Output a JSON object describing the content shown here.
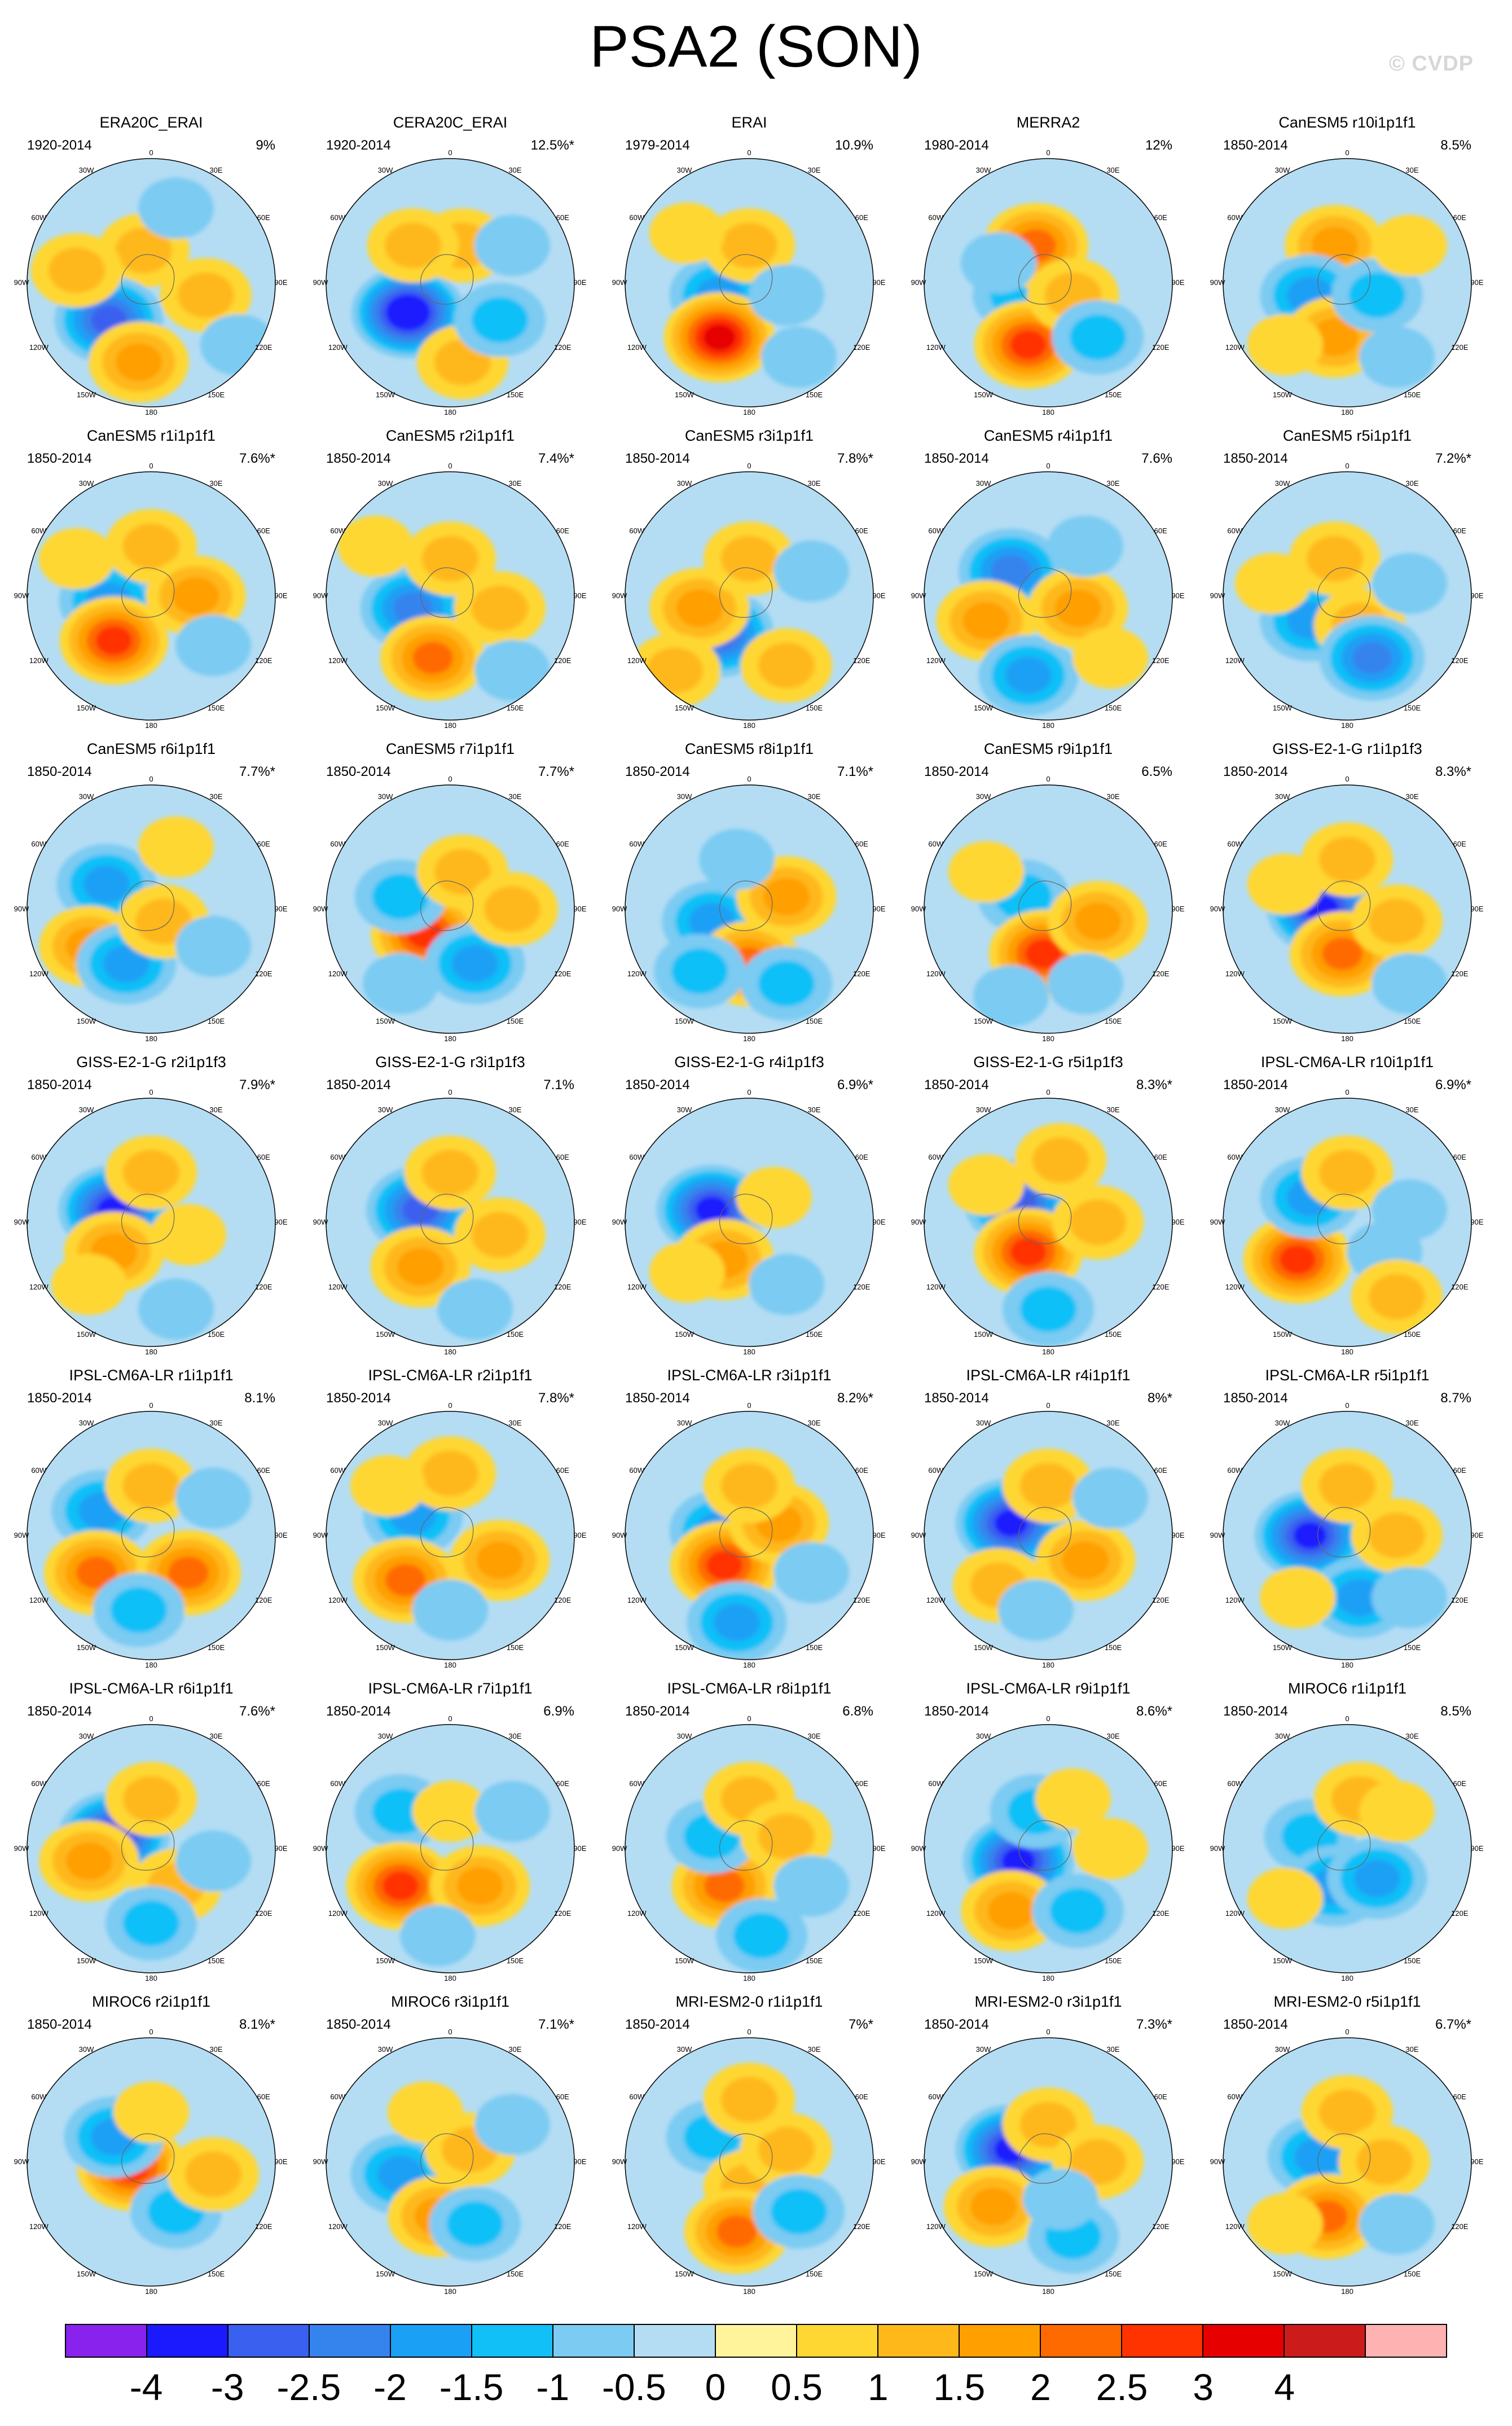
{
  "title": "PSA2 (SON)",
  "watermark": "© CVDP",
  "lon_labels": [
    "0",
    "30E",
    "60E",
    "90E",
    "120E",
    "150E",
    "180",
    "150W",
    "120W",
    "90W",
    "60W",
    "30W"
  ],
  "panels": [
    {
      "name": "ERA20C_ERAI",
      "period": "1920-2014",
      "pct": "9%"
    },
    {
      "name": "CERA20C_ERAI",
      "period": "1920-2014",
      "pct": "12.5%*"
    },
    {
      "name": "ERAI",
      "period": "1979-2014",
      "pct": "10.9%"
    },
    {
      "name": "MERRA2",
      "period": "1980-2014",
      "pct": "12%"
    },
    {
      "name": "CanESM5 r10i1p1f1",
      "period": "1850-2014",
      "pct": "8.5%"
    },
    {
      "name": "CanESM5 r1i1p1f1",
      "period": "1850-2014",
      "pct": "7.6%*"
    },
    {
      "name": "CanESM5 r2i1p1f1",
      "period": "1850-2014",
      "pct": "7.4%*"
    },
    {
      "name": "CanESM5 r3i1p1f1",
      "period": "1850-2014",
      "pct": "7.8%*"
    },
    {
      "name": "CanESM5 r4i1p1f1",
      "period": "1850-2014",
      "pct": "7.6%"
    },
    {
      "name": "CanESM5 r5i1p1f1",
      "period": "1850-2014",
      "pct": "7.2%*"
    },
    {
      "name": "CanESM5 r6i1p1f1",
      "period": "1850-2014",
      "pct": "7.7%*"
    },
    {
      "name": "CanESM5 r7i1p1f1",
      "period": "1850-2014",
      "pct": "7.7%*"
    },
    {
      "name": "CanESM5 r8i1p1f1",
      "period": "1850-2014",
      "pct": "7.1%*"
    },
    {
      "name": "CanESM5 r9i1p1f1",
      "period": "1850-2014",
      "pct": "6.5%"
    },
    {
      "name": "GISS-E2-1-G r1i1p1f3",
      "period": "1850-2014",
      "pct": "8.3%*"
    },
    {
      "name": "GISS-E2-1-G r2i1p1f3",
      "period": "1850-2014",
      "pct": "7.9%*"
    },
    {
      "name": "GISS-E2-1-G r3i1p1f3",
      "period": "1850-2014",
      "pct": "7.1%"
    },
    {
      "name": "GISS-E2-1-G r4i1p1f3",
      "period": "1850-2014",
      "pct": "6.9%*"
    },
    {
      "name": "GISS-E2-1-G r5i1p1f3",
      "period": "1850-2014",
      "pct": "8.3%*"
    },
    {
      "name": "IPSL-CM6A-LR r10i1p1f1",
      "period": "1850-2014",
      "pct": "6.9%*"
    },
    {
      "name": "IPSL-CM6A-LR r1i1p1f1",
      "period": "1850-2014",
      "pct": "8.1%"
    },
    {
      "name": "IPSL-CM6A-LR r2i1p1f1",
      "period": "1850-2014",
      "pct": "7.8%*"
    },
    {
      "name": "IPSL-CM6A-LR r3i1p1f1",
      "period": "1850-2014",
      "pct": "8.2%*"
    },
    {
      "name": "IPSL-CM6A-LR r4i1p1f1",
      "period": "1850-2014",
      "pct": "8%*"
    },
    {
      "name": "IPSL-CM6A-LR r5i1p1f1",
      "period": "1850-2014",
      "pct": "8.7%"
    },
    {
      "name": "IPSL-CM6A-LR r6i1p1f1",
      "period": "1850-2014",
      "pct": "7.6%*"
    },
    {
      "name": "IPSL-CM6A-LR r7i1p1f1",
      "period": "1850-2014",
      "pct": "6.9%"
    },
    {
      "name": "IPSL-CM6A-LR r8i1p1f1",
      "period": "1850-2014",
      "pct": "6.8%"
    },
    {
      "name": "IPSL-CM6A-LR r9i1p1f1",
      "period": "1850-2014",
      "pct": "8.6%*"
    },
    {
      "name": "MIROC6 r1i1p1f1",
      "period": "1850-2014",
      "pct": "8.5%"
    },
    {
      "name": "MIROC6 r2i1p1f1",
      "period": "1850-2014",
      "pct": "8.1%*"
    },
    {
      "name": "MIROC6 r3i1p1f1",
      "period": "1850-2014",
      "pct": "7.1%*"
    },
    {
      "name": "MRI-ESM2-0 r1i1p1f1",
      "period": "1850-2014",
      "pct": "7%*"
    },
    {
      "name": "MRI-ESM2-0 r3i1p1f1",
      "period": "1850-2014",
      "pct": "7.3%*"
    },
    {
      "name": "MRI-ESM2-0 r5i1p1f1",
      "period": "1850-2014",
      "pct": "6.7%*"
    }
  ],
  "colorbar": {
    "colors": [
      "#8a22ee",
      "#1b1aff",
      "#3a60f0",
      "#3584ee",
      "#1aa0f5",
      "#10c0f7",
      "#7ccbf2",
      "#b4ddf4",
      "#fff49c",
      "#ffd733",
      "#ffb81a",
      "#ff9f00",
      "#ff6a00",
      "#ff3300",
      "#e60000",
      "#cc1b1b",
      "#ffb2b2"
    ],
    "labels": [
      "-4",
      "-3",
      "-2.5",
      "-2",
      "-1.5",
      "-1",
      "-0.5",
      "0",
      "0.5",
      "1",
      "1.5",
      "2",
      "2.5",
      "3",
      "4"
    ]
  },
  "patterns": [
    [
      [
        0.47,
        0.37,
        1
      ],
      [
        0.33,
        0.65,
        -2.5
      ],
      [
        0.45,
        0.82,
        1.5
      ],
      [
        0.72,
        0.55,
        1
      ],
      [
        0.2,
        0.45,
        1
      ],
      [
        0.6,
        0.2,
        -0.5
      ],
      [
        0.85,
        0.75,
        -0.5
      ]
    ],
    [
      [
        0.33,
        0.62,
        -3.5
      ],
      [
        0.55,
        0.35,
        1
      ],
      [
        0.35,
        0.35,
        1
      ],
      [
        0.55,
        0.82,
        1
      ],
      [
        0.7,
        0.65,
        -1
      ],
      [
        0.75,
        0.35,
        -0.5
      ]
    ],
    [
      [
        0.38,
        0.55,
        -1.5
      ],
      [
        0.38,
        0.72,
        3
      ],
      [
        0.5,
        0.35,
        1
      ],
      [
        0.65,
        0.55,
        -0.5
      ],
      [
        0.7,
        0.8,
        -0.5
      ],
      [
        0.25,
        0.3,
        0.5
      ]
    ],
    [
      [
        0.38,
        0.55,
        -1
      ],
      [
        0.42,
        0.75,
        2.5
      ],
      [
        0.45,
        0.35,
        2
      ],
      [
        0.6,
        0.55,
        1
      ],
      [
        0.7,
        0.72,
        -1
      ],
      [
        0.3,
        0.42,
        -0.5
      ]
    ],
    [
      [
        0.45,
        0.35,
        1.5
      ],
      [
        0.35,
        0.55,
        -1.5
      ],
      [
        0.45,
        0.72,
        1.5
      ],
      [
        0.62,
        0.55,
        -1
      ],
      [
        0.75,
        0.35,
        0.5
      ],
      [
        0.7,
        0.8,
        -0.5
      ],
      [
        0.25,
        0.75,
        0.5
      ]
    ],
    [
      [
        0.33,
        0.52,
        -1.5
      ],
      [
        0.35,
        0.68,
        2.5
      ],
      [
        0.5,
        0.3,
        1
      ],
      [
        0.68,
        0.5,
        1.5
      ],
      [
        0.75,
        0.7,
        -0.5
      ],
      [
        0.2,
        0.35,
        0.5
      ]
    ],
    [
      [
        0.35,
        0.55,
        -2
      ],
      [
        0.43,
        0.75,
        2
      ],
      [
        0.5,
        0.35,
        1
      ],
      [
        0.7,
        0.55,
        1
      ],
      [
        0.75,
        0.8,
        -0.5
      ],
      [
        0.2,
        0.3,
        0.5
      ]
    ],
    [
      [
        0.38,
        0.65,
        -2.5
      ],
      [
        0.3,
        0.55,
        1.5
      ],
      [
        0.5,
        0.35,
        1
      ],
      [
        0.65,
        0.78,
        1
      ],
      [
        0.75,
        0.4,
        -0.5
      ],
      [
        0.2,
        0.8,
        1
      ]
    ],
    [
      [
        0.35,
        0.4,
        -2
      ],
      [
        0.25,
        0.6,
        1.5
      ],
      [
        0.42,
        0.82,
        -1.5
      ],
      [
        0.62,
        0.55,
        1.5
      ],
      [
        0.75,
        0.75,
        0.5
      ],
      [
        0.65,
        0.3,
        -0.5
      ]
    ],
    [
      [
        0.35,
        0.6,
        -1.5
      ],
      [
        0.45,
        0.35,
        1
      ],
      [
        0.55,
        0.62,
        1
      ],
      [
        0.6,
        0.75,
        -2
      ],
      [
        0.75,
        0.45,
        -0.5
      ],
      [
        0.2,
        0.45,
        0.5
      ]
    ],
    [
      [
        0.32,
        0.4,
        -1.5
      ],
      [
        0.25,
        0.65,
        1.5
      ],
      [
        0.4,
        0.72,
        -1.5
      ],
      [
        0.55,
        0.55,
        1
      ],
      [
        0.75,
        0.65,
        -0.5
      ],
      [
        0.6,
        0.25,
        0.5
      ]
    ],
    [
      [
        0.4,
        0.6,
        2.5
      ],
      [
        0.3,
        0.45,
        -1
      ],
      [
        0.6,
        0.72,
        -1.5
      ],
      [
        0.55,
        0.35,
        1
      ],
      [
        0.75,
        0.5,
        1
      ],
      [
        0.3,
        0.8,
        -0.5
      ]
    ],
    [
      [
        0.35,
        0.55,
        -1.5
      ],
      [
        0.5,
        0.72,
        2
      ],
      [
        0.3,
        0.75,
        -1
      ],
      [
        0.65,
        0.8,
        -1
      ],
      [
        0.65,
        0.45,
        1.5
      ],
      [
        0.45,
        0.3,
        -0.5
      ]
    ],
    [
      [
        0.4,
        0.45,
        -1
      ],
      [
        0.48,
        0.68,
        2.5
      ],
      [
        0.7,
        0.55,
        1.5
      ],
      [
        0.35,
        0.85,
        -0.5
      ],
      [
        0.65,
        0.8,
        -0.5
      ],
      [
        0.25,
        0.35,
        0.5
      ]
    ],
    [
      [
        0.4,
        0.5,
        -3
      ],
      [
        0.48,
        0.68,
        2
      ],
      [
        0.5,
        0.3,
        1
      ],
      [
        0.7,
        0.55,
        1
      ],
      [
        0.75,
        0.8,
        -0.5
      ],
      [
        0.25,
        0.4,
        0.5
      ]
    ],
    [
      [
        0.35,
        0.45,
        -3
      ],
      [
        0.35,
        0.62,
        1.5
      ],
      [
        0.5,
        0.3,
        1
      ],
      [
        0.65,
        0.55,
        0.5
      ],
      [
        0.6,
        0.85,
        -0.5
      ],
      [
        0.25,
        0.75,
        0.5
      ]
    ],
    [
      [
        0.38,
        0.45,
        -2.5
      ],
      [
        0.38,
        0.68,
        1.5
      ],
      [
        0.5,
        0.3,
        1
      ],
      [
        0.7,
        0.55,
        1
      ],
      [
        0.6,
        0.85,
        -0.5
      ]
    ],
    [
      [
        0.35,
        0.45,
        -3
      ],
      [
        0.4,
        0.65,
        1.5
      ],
      [
        0.6,
        0.4,
        0.5
      ],
      [
        0.65,
        0.75,
        -0.5
      ],
      [
        0.25,
        0.7,
        0.5
      ]
    ],
    [
      [
        0.38,
        0.42,
        -2.5
      ],
      [
        0.42,
        0.62,
        2.5
      ],
      [
        0.5,
        0.85,
        -1
      ],
      [
        0.7,
        0.5,
        1
      ],
      [
        0.25,
        0.35,
        0.5
      ],
      [
        0.55,
        0.25,
        1
      ]
    ],
    [
      [
        0.3,
        0.65,
        2.5
      ],
      [
        0.35,
        0.4,
        -1.5
      ],
      [
        0.5,
        0.3,
        1
      ],
      [
        0.65,
        0.62,
        -0.5
      ],
      [
        0.7,
        0.8,
        1
      ],
      [
        0.75,
        0.45,
        -0.5
      ]
    ],
    [
      [
        0.3,
        0.4,
        -1.5
      ],
      [
        0.28,
        0.65,
        2
      ],
      [
        0.65,
        0.65,
        2
      ],
      [
        0.45,
        0.8,
        -1
      ],
      [
        0.5,
        0.3,
        1
      ],
      [
        0.75,
        0.35,
        -0.5
      ]
    ],
    [
      [
        0.35,
        0.42,
        -1.5
      ],
      [
        0.32,
        0.68,
        2
      ],
      [
        0.7,
        0.6,
        1.5
      ],
      [
        0.5,
        0.8,
        -0.5
      ],
      [
        0.5,
        0.25,
        1
      ],
      [
        0.25,
        0.3,
        0.5
      ]
    ],
    [
      [
        0.38,
        0.48,
        -1.5
      ],
      [
        0.4,
        0.62,
        2.5
      ],
      [
        0.45,
        0.85,
        -1.5
      ],
      [
        0.62,
        0.45,
        1.5
      ],
      [
        0.5,
        0.3,
        1
      ],
      [
        0.75,
        0.65,
        -0.5
      ]
    ],
    [
      [
        0.35,
        0.45,
        -3
      ],
      [
        0.65,
        0.6,
        1.5
      ],
      [
        0.5,
        0.3,
        1
      ],
      [
        0.3,
        0.7,
        1
      ],
      [
        0.45,
        0.8,
        -0.5
      ],
      [
        0.75,
        0.35,
        -0.5
      ]
    ],
    [
      [
        0.35,
        0.5,
        -3
      ],
      [
        0.55,
        0.75,
        -1.5
      ],
      [
        0.5,
        0.3,
        1
      ],
      [
        0.7,
        0.5,
        1
      ],
      [
        0.3,
        0.75,
        0.5
      ],
      [
        0.75,
        0.75,
        -0.5
      ]
    ],
    [
      [
        0.35,
        0.45,
        -3
      ],
      [
        0.25,
        0.55,
        1.5
      ],
      [
        0.5,
        0.3,
        1
      ],
      [
        0.6,
        0.65,
        1
      ],
      [
        0.75,
        0.55,
        -0.5
      ],
      [
        0.5,
        0.8,
        -1
      ]
    ],
    [
      [
        0.3,
        0.35,
        -1
      ],
      [
        0.3,
        0.65,
        2.5
      ],
      [
        0.62,
        0.65,
        1.5
      ],
      [
        0.5,
        0.35,
        0.5
      ],
      [
        0.45,
        0.85,
        -0.5
      ],
      [
        0.75,
        0.35,
        -0.5
      ]
    ],
    [
      [
        0.4,
        0.65,
        2
      ],
      [
        0.35,
        0.45,
        -1
      ],
      [
        0.5,
        0.3,
        1
      ],
      [
        0.65,
        0.45,
        1
      ],
      [
        0.55,
        0.85,
        -1
      ],
      [
        0.75,
        0.65,
        -0.5
      ]
    ],
    [
      [
        0.38,
        0.55,
        -3
      ],
      [
        0.45,
        0.35,
        -1
      ],
      [
        0.35,
        0.75,
        1.5
      ],
      [
        0.6,
        0.3,
        0.5
      ],
      [
        0.62,
        0.75,
        -1
      ],
      [
        0.75,
        0.5,
        0.5
      ]
    ],
    [
      [
        0.35,
        0.45,
        -1
      ],
      [
        0.45,
        0.65,
        -1.5
      ],
      [
        0.62,
        0.62,
        -1.5
      ],
      [
        0.55,
        0.3,
        1
      ],
      [
        0.7,
        0.35,
        0.5
      ],
      [
        0.25,
        0.7,
        0.5
      ]
    ],
    [
      [
        0.42,
        0.52,
        2.5
      ],
      [
        0.35,
        0.4,
        -1.5
      ],
      [
        0.5,
        0.3,
        0.5
      ],
      [
        0.6,
        0.7,
        -1
      ],
      [
        0.75,
        0.55,
        1
      ]
    ],
    [
      [
        0.3,
        0.55,
        -1.5
      ],
      [
        0.45,
        0.72,
        1.5
      ],
      [
        0.58,
        0.45,
        1
      ],
      [
        0.6,
        0.75,
        -1
      ],
      [
        0.4,
        0.3,
        0.5
      ],
      [
        0.75,
        0.35,
        -0.5
      ]
    ],
    [
      [
        0.35,
        0.4,
        -1
      ],
      [
        0.5,
        0.6,
        1
      ],
      [
        0.45,
        0.78,
        2
      ],
      [
        0.65,
        0.45,
        1
      ],
      [
        0.7,
        0.7,
        -1
      ],
      [
        0.5,
        0.25,
        1
      ]
    ],
    [
      [
        0.35,
        0.45,
        -3
      ],
      [
        0.28,
        0.68,
        1.5
      ],
      [
        0.5,
        0.35,
        1
      ],
      [
        0.6,
        0.8,
        -1
      ],
      [
        0.7,
        0.5,
        1
      ],
      [
        0.55,
        0.65,
        -0.5
      ]
    ],
    [
      [
        0.38,
        0.48,
        -1.5
      ],
      [
        0.42,
        0.72,
        2
      ],
      [
        0.5,
        0.3,
        1
      ],
      [
        0.65,
        0.5,
        1
      ],
      [
        0.7,
        0.75,
        -0.5
      ],
      [
        0.25,
        0.75,
        0.5
      ]
    ]
  ]
}
